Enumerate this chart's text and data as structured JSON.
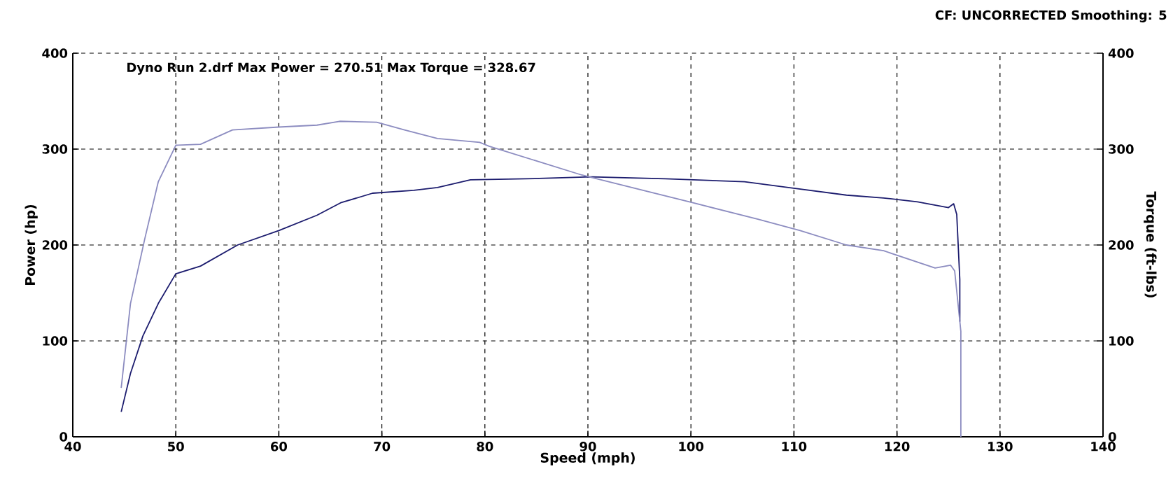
{
  "chart_data": {
    "type": "line",
    "xlabel": "Speed (mph)",
    "ylabel": "Power (hp)",
    "y2label": "Torque (ft-lbs)",
    "annotations": [
      "CF: UNCORRECTED  Smoothing: 5",
      "Dyno Run 2.drf Max Power = 270.51     Max Torque = 328.67"
    ],
    "xlim": [
      40,
      140
    ],
    "xticks": [
      40,
      50,
      60,
      70,
      80,
      90,
      100,
      110,
      120,
      130,
      140
    ],
    "ylim": [
      0,
      400
    ],
    "yticks": [
      0,
      100,
      200,
      300,
      400
    ],
    "y2lim": [
      0,
      400
    ],
    "y2ticks": [
      0,
      100,
      200,
      300,
      400
    ],
    "grid": true,
    "line_style": "solid",
    "marker": "none",
    "series": [
      {
        "color": "#1c1c6e",
        "axis": "y",
        "x": [
          44.7,
          45.6,
          46.8,
          48.3,
          50,
          52.4,
          56,
          60,
          63.7,
          66,
          69.1,
          73.1,
          75.4,
          78.6,
          84,
          90.3,
          97.5,
          105.2,
          110.1,
          115.1,
          118.7,
          122,
          125,
          125.5,
          125.8,
          126.1,
          126.1
        ],
        "values": [
          26,
          66,
          105,
          139,
          170,
          178,
          200,
          215,
          231,
          244,
          254,
          257,
          260,
          268,
          269,
          271,
          269,
          266,
          259,
          252,
          249,
          245,
          239,
          243,
          232,
          164,
          120
        ]
      },
      {
        "color": "#8c8cc0",
        "axis": "y2",
        "x": [
          44.7,
          45.6,
          47,
          48.3,
          50,
          52.4,
          55.5,
          60,
          63.7,
          65.9,
          69.5,
          72.2,
          75.4,
          79.5,
          80.4,
          84.9,
          89.4,
          96.1,
          100.2,
          106.5,
          110.6,
          115.1,
          118.7,
          123.7,
          125.2,
          125.6,
          126.2,
          126.2
        ],
        "values": [
          51,
          139,
          207,
          266,
          304,
          305,
          320,
          323,
          325,
          329,
          328,
          320,
          311,
          307,
          303,
          288,
          273,
          255,
          244,
          227,
          215,
          200,
          194,
          176,
          179,
          173,
          110,
          0
        ]
      }
    ]
  }
}
